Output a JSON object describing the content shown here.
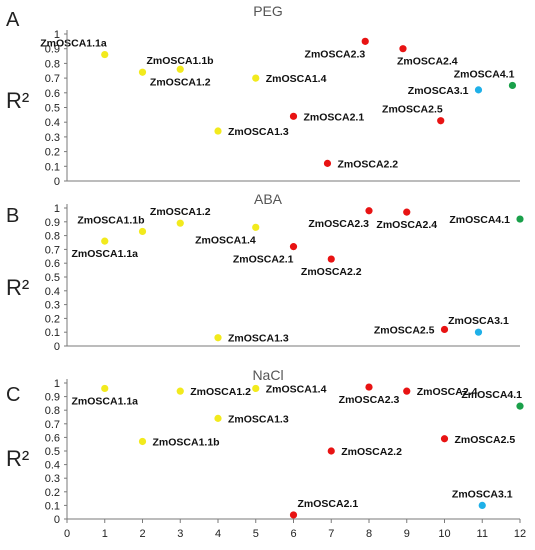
{
  "chart_data": [
    {
      "type": "scatter",
      "panel": "A",
      "title": "PEG",
      "ylabel": "R²",
      "ylim": [
        0,
        1
      ],
      "yticks": [
        "0",
        "0.1",
        "0.2",
        "0.3",
        "0.4",
        "0.5",
        "0.6",
        "0.7",
        "0.8",
        "0.9",
        "1"
      ],
      "points": [
        {
          "label": "ZmOSCA1.1a",
          "x": 1,
          "y": 0.86,
          "color": "yellow",
          "label_pos": "upper-left"
        },
        {
          "label": "ZmOSCA1.1b",
          "x": 2,
          "y": 0.74,
          "color": "yellow",
          "label_pos": "upper-right"
        },
        {
          "label": "ZmOSCA1.2",
          "x": 3,
          "y": 0.76,
          "color": "yellow",
          "label_pos": "lower-center"
        },
        {
          "label": "ZmOSCA1.4",
          "x": 5,
          "y": 0.7,
          "color": "yellow",
          "label_pos": "right"
        },
        {
          "label": "ZmOSCA1.3",
          "x": 4,
          "y": 0.34,
          "color": "yellow",
          "label_pos": "right"
        },
        {
          "label": "ZmOSCA2.1",
          "x": 6,
          "y": 0.44,
          "color": "red",
          "label_pos": "right"
        },
        {
          "label": "ZmOSCA2.2",
          "x": 6.9,
          "y": 0.12,
          "color": "red",
          "label_pos": "right"
        },
        {
          "label": "ZmOSCA2.3",
          "x": 7.9,
          "y": 0.95,
          "color": "red",
          "label_pos": "lower-left"
        },
        {
          "label": "ZmOSCA2.4",
          "x": 8.9,
          "y": 0.9,
          "color": "red",
          "label_pos": "lower-right"
        },
        {
          "label": "ZmOSCA2.5",
          "x": 9.9,
          "y": 0.41,
          "color": "red",
          "label_pos": "upper-left"
        },
        {
          "label": "ZmOSCA3.1",
          "x": 10.9,
          "y": 0.62,
          "color": "blue",
          "label_pos": "left"
        },
        {
          "label": "ZmOSCA4.1",
          "x": 11.8,
          "y": 0.65,
          "color": "green",
          "label_pos": "upper-left"
        }
      ]
    },
    {
      "type": "scatter",
      "panel": "B",
      "title": "ABA",
      "ylabel": "R²",
      "ylim": [
        0,
        1
      ],
      "yticks": [
        "0",
        "0.1",
        "0.2",
        "0.3",
        "0.4",
        "0.5",
        "0.6",
        "0.7",
        "0.8",
        "0.9",
        "1"
      ],
      "points": [
        {
          "label": "ZmOSCA1.1a",
          "x": 1,
          "y": 0.76,
          "color": "yellow",
          "label_pos": "lower-center"
        },
        {
          "label": "ZmOSCA1.1b",
          "x": 2,
          "y": 0.83,
          "color": "yellow",
          "label_pos": "upper-left"
        },
        {
          "label": "ZmOSCA1.2",
          "x": 3,
          "y": 0.89,
          "color": "yellow",
          "label_pos": "upper-center"
        },
        {
          "label": "ZmOSCA1.4",
          "x": 5,
          "y": 0.86,
          "color": "yellow",
          "label_pos": "lower-left"
        },
        {
          "label": "ZmOSCA1.3",
          "x": 4,
          "y": 0.06,
          "color": "yellow",
          "label_pos": "right"
        },
        {
          "label": "ZmOSCA2.1",
          "x": 6,
          "y": 0.72,
          "color": "red",
          "label_pos": "lower-left"
        },
        {
          "label": "ZmOSCA2.2",
          "x": 7,
          "y": 0.63,
          "color": "red",
          "label_pos": "lower-center"
        },
        {
          "label": "ZmOSCA2.3",
          "x": 8,
          "y": 0.98,
          "color": "red",
          "label_pos": "lower-left"
        },
        {
          "label": "ZmOSCA2.4",
          "x": 9,
          "y": 0.97,
          "color": "red",
          "label_pos": "lower-center"
        },
        {
          "label": "ZmOSCA2.5",
          "x": 10,
          "y": 0.12,
          "color": "red",
          "label_pos": "left"
        },
        {
          "label": "ZmOSCA3.1",
          "x": 10.9,
          "y": 0.1,
          "color": "blue",
          "label_pos": "upper-center"
        },
        {
          "label": "ZmOSCA4.1",
          "x": 12,
          "y": 0.92,
          "color": "green",
          "label_pos": "left"
        }
      ]
    },
    {
      "type": "scatter",
      "panel": "C",
      "title": "NaCl",
      "ylabel": "R²",
      "ylim": [
        0,
        1
      ],
      "yticks": [
        "0",
        "0.1",
        "0.2",
        "0.3",
        "0.4",
        "0.5",
        "0.6",
        "0.7",
        "0.8",
        "0.9",
        "1"
      ],
      "xticks": [
        "0",
        "1",
        "2",
        "3",
        "4",
        "5",
        "6",
        "7",
        "8",
        "9",
        "10",
        "11",
        "12"
      ],
      "xlim": [
        0,
        12
      ],
      "points": [
        {
          "label": "ZmOSCA1.1a",
          "x": 1,
          "y": 0.96,
          "color": "yellow",
          "label_pos": "lower-center"
        },
        {
          "label": "ZmOSCA1.1b",
          "x": 2,
          "y": 0.57,
          "color": "yellow",
          "label_pos": "right"
        },
        {
          "label": "ZmOSCA1.2",
          "x": 3,
          "y": 0.94,
          "color": "yellow",
          "label_pos": "right"
        },
        {
          "label": "ZmOSCA1.3",
          "x": 4,
          "y": 0.74,
          "color": "yellow",
          "label_pos": "right"
        },
        {
          "label": "ZmOSCA1.4",
          "x": 5,
          "y": 0.96,
          "color": "yellow",
          "label_pos": "right"
        },
        {
          "label": "ZmOSCA2.1",
          "x": 6,
          "y": 0.03,
          "color": "red",
          "label_pos": "upper-right"
        },
        {
          "label": "ZmOSCA2.2",
          "x": 7,
          "y": 0.5,
          "color": "red",
          "label_pos": "right"
        },
        {
          "label": "ZmOSCA2.3",
          "x": 8,
          "y": 0.97,
          "color": "red",
          "label_pos": "lower-center"
        },
        {
          "label": "ZmOSCA2.4",
          "x": 9,
          "y": 0.94,
          "color": "red",
          "label_pos": "right"
        },
        {
          "label": "ZmOSCA2.5",
          "x": 10,
          "y": 0.59,
          "color": "red",
          "label_pos": "right"
        },
        {
          "label": "ZmOSCA3.1",
          "x": 11,
          "y": 0.1,
          "color": "blue",
          "label_pos": "upper-center"
        },
        {
          "label": "ZmOSCA4.1",
          "x": 12,
          "y": 0.83,
          "color": "green",
          "label_pos": "upper-left"
        }
      ]
    }
  ],
  "colors": {
    "yellow": "#f2ea1d",
    "red": "#e81313",
    "blue": "#1fb0e8",
    "green": "#1aa04a",
    "axis": "#7a7a7a"
  }
}
